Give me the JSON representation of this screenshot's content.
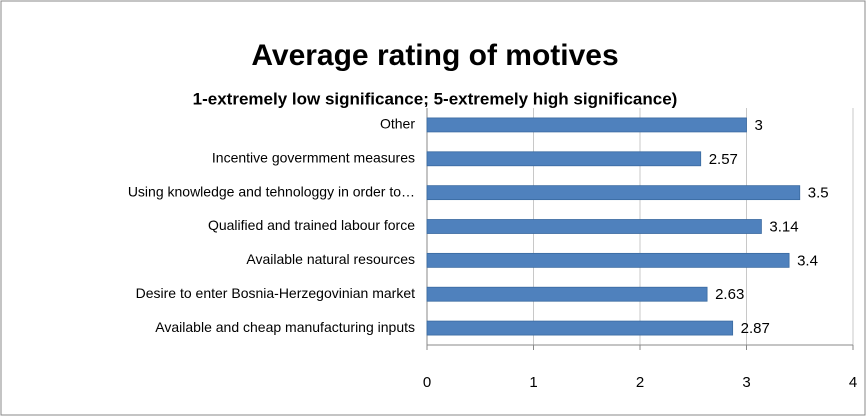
{
  "chart_data": {
    "type": "bar",
    "orientation": "horizontal",
    "title": "Average rating of motives",
    "subtitle": "1-extremely low significance; 5-extremely high significance)",
    "categories": [
      "Other",
      "Incentive govermment measures",
      "Using knowledge and tehnologgy in order to…",
      "Qualified and trained labour force",
      "Available natural resources",
      "Desire to enter Bosnia-Herzegovinian market",
      "Available and cheap manufacturing inputs"
    ],
    "values": [
      3,
      2.57,
      3.5,
      3.14,
      3.4,
      2.63,
      2.87
    ],
    "color": "#4f81bd",
    "xlim": [
      0,
      4
    ],
    "xticks": [
      0,
      1,
      2,
      3,
      4
    ],
    "grid": true
  }
}
